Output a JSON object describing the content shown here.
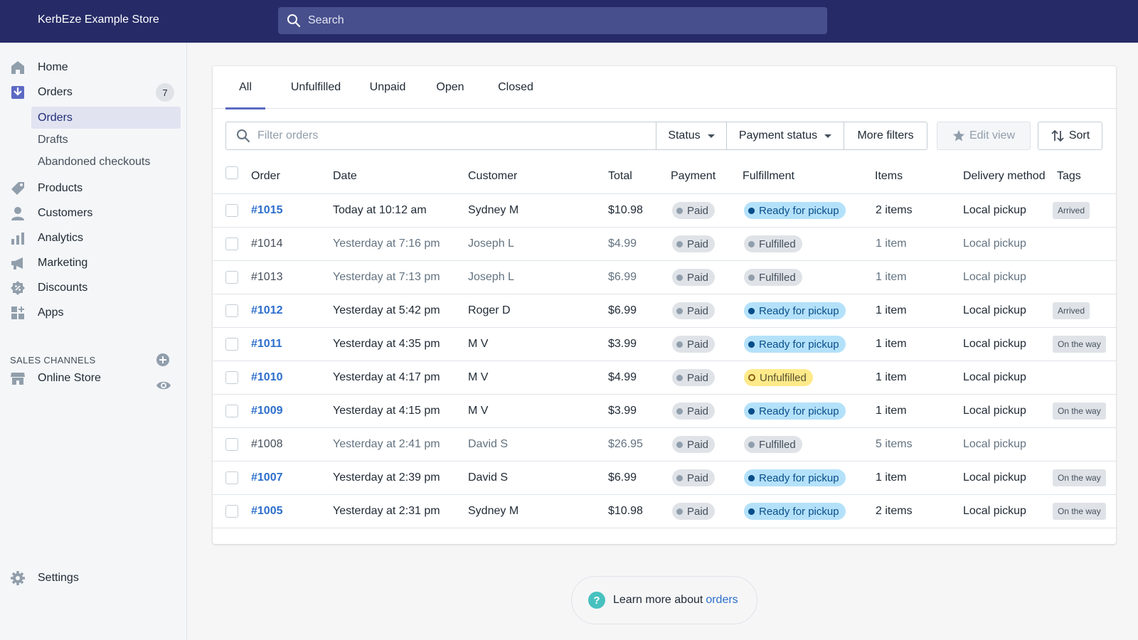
{
  "topbar": {
    "store_name": "KerbEze Example Store",
    "search_placeholder": "Search"
  },
  "sidebar": {
    "home": "Home",
    "orders": "Orders",
    "orders_badge": "7",
    "sub_orders": "Orders",
    "sub_drafts": "Drafts",
    "sub_abandoned": "Abandoned checkouts",
    "products": "Products",
    "customers": "Customers",
    "analytics": "Analytics",
    "marketing": "Marketing",
    "discounts": "Discounts",
    "apps": "Apps",
    "sales_channels_title": "SALES CHANNELS",
    "online_store": "Online Store",
    "settings": "Settings"
  },
  "tabs": [
    "All",
    "Unfulfilled",
    "Unpaid",
    "Open",
    "Closed"
  ],
  "filters": {
    "placeholder": "Filter orders",
    "status": "Status",
    "payment_status": "Payment status",
    "more_filters": "More filters",
    "edit_view": "Edit view",
    "sort": "Sort"
  },
  "table": {
    "headers": [
      "Order",
      "Date",
      "Customer",
      "Total",
      "Payment",
      "Fulfillment",
      "Items",
      "Delivery method",
      "Tags"
    ],
    "rows": [
      {
        "order": "#1015",
        "date": "Today at 10:12 am",
        "customer": "Sydney M",
        "total": "$10.98",
        "payment": "Paid",
        "fulfillment": "Ready for pickup",
        "items": "2 items",
        "delivery": "Local pickup",
        "tag": "Arrived"
      },
      {
        "order": "#1014",
        "date": "Yesterday at 7:16 pm",
        "customer": "Joseph L",
        "total": "$4.99",
        "payment": "Paid",
        "fulfillment": "Fulfilled",
        "items": "1 item",
        "delivery": "Local pickup",
        "tag": ""
      },
      {
        "order": "#1013",
        "date": "Yesterday at 7:13 pm",
        "customer": "Joseph L",
        "total": "$6.99",
        "payment": "Paid",
        "fulfillment": "Fulfilled",
        "items": "1 item",
        "delivery": "Local pickup",
        "tag": ""
      },
      {
        "order": "#1012",
        "date": "Yesterday at 5:42 pm",
        "customer": "Roger D",
        "total": "$6.99",
        "payment": "Paid",
        "fulfillment": "Ready for pickup",
        "items": "1 item",
        "delivery": "Local pickup",
        "tag": "Arrived"
      },
      {
        "order": "#1011",
        "date": "Yesterday at 4:35 pm",
        "customer": "M V",
        "total": "$3.99",
        "payment": "Paid",
        "fulfillment": "Ready for pickup",
        "items": "1 item",
        "delivery": "Local pickup",
        "tag": "On the way"
      },
      {
        "order": "#1010",
        "date": "Yesterday at 4:17 pm",
        "customer": "M V",
        "total": "$4.99",
        "payment": "Paid",
        "fulfillment": "Unfulfilled",
        "items": "1 item",
        "delivery": "Local pickup",
        "tag": ""
      },
      {
        "order": "#1009",
        "date": "Yesterday at 4:15 pm",
        "customer": "M V",
        "total": "$3.99",
        "payment": "Paid",
        "fulfillment": "Ready for pickup",
        "items": "1 item",
        "delivery": "Local pickup",
        "tag": "On the way"
      },
      {
        "order": "#1008",
        "date": "Yesterday at 2:41 pm",
        "customer": "David S",
        "total": "$26.95",
        "payment": "Paid",
        "fulfillment": "Fulfilled",
        "items": "5 items",
        "delivery": "Local pickup",
        "tag": ""
      },
      {
        "order": "#1007",
        "date": "Yesterday at 2:39 pm",
        "customer": "David S",
        "total": "$6.99",
        "payment": "Paid",
        "fulfillment": "Ready for pickup",
        "items": "1 item",
        "delivery": "Local pickup",
        "tag": "On the way"
      },
      {
        "order": "#1005",
        "date": "Yesterday at 2:31 pm",
        "customer": "Sydney M",
        "total": "$10.98",
        "payment": "Paid",
        "fulfillment": "Ready for pickup",
        "items": "2 items",
        "delivery": "Local pickup",
        "tag": "On the way"
      }
    ]
  },
  "footer": {
    "learn_text": "Learn more about",
    "learn_link": "orders"
  },
  "colors": {
    "topbar": "#262b67",
    "accent": "#5c6ac4",
    "link": "#2c6ecb",
    "ready_pill": "#b4e1fa",
    "unfulfilled_pill": "#ffea8a"
  },
  "icons": [
    "search-icon",
    "home-icon",
    "orders-icon",
    "products-icon",
    "customers-icon",
    "analytics-icon",
    "marketing-icon",
    "discounts-icon",
    "apps-icon",
    "store-icon",
    "eye-icon",
    "plus-circle-icon",
    "settings-icon",
    "star-icon",
    "sort-icon",
    "help-icon"
  ]
}
